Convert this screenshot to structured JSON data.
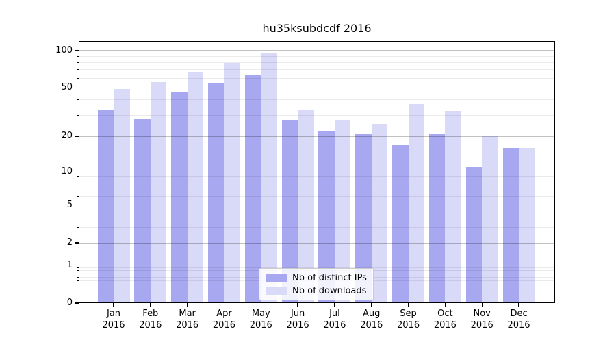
{
  "chart_data": {
    "type": "bar",
    "title": "hu35ksubdcdf 2016",
    "categories": [
      "Jan",
      "Feb",
      "Mar",
      "Apr",
      "May",
      "Jun",
      "Jul",
      "Aug",
      "Sep",
      "Oct",
      "Nov",
      "Dec"
    ],
    "x_year": "2016",
    "series": [
      {
        "name": "Nb of distinct IPs",
        "color": "#a8a8f0",
        "values": [
          33,
          28,
          46,
          55,
          63,
          27,
          22,
          21,
          17,
          21,
          11,
          16
        ]
      },
      {
        "name": "Nb of downloads",
        "color": "#d9d9f8",
        "values": [
          49,
          56,
          67,
          79,
          95,
          33,
          27,
          25,
          37,
          32,
          20,
          16
        ]
      }
    ],
    "y_scale": "log1p",
    "y_ticks": [
      0,
      1,
      2,
      5,
      10,
      20,
      50,
      100
    ],
    "y_minor_ticks": [
      0.1,
      0.2,
      0.3,
      0.4,
      0.5,
      0.6,
      0.7,
      0.8,
      0.9,
      3,
      4,
      6,
      7,
      8,
      9,
      30,
      40,
      60,
      70,
      80,
      90
    ],
    "ylim": [
      0,
      119
    ],
    "grid": true,
    "legend_position": "lower center"
  },
  "colors": {
    "background": "#ffffff",
    "grid_major": "rgba(0,0,0,0.24)",
    "grid_minor": "rgba(0,0,0,0.08)",
    "spine": "#000000",
    "legend_border": "#cccccc"
  }
}
